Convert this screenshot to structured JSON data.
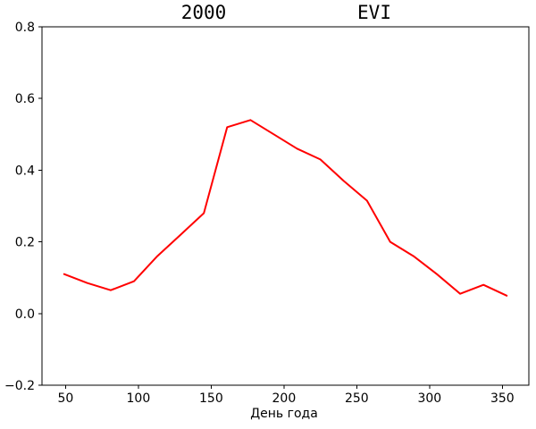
{
  "figure": {
    "title_year": "2000",
    "title_series": "EVI",
    "xlabel": "День года",
    "background_color": "#ffffff",
    "axes_color": "#000000",
    "text_color": "#000000"
  },
  "chart_data": {
    "type": "line",
    "title": "2000",
    "subtitle": "EVI",
    "xlabel": "День года",
    "ylabel": "",
    "xlim": [
      33.8,
      368.2
    ],
    "ylim": [
      -0.2,
      0.8
    ],
    "xticks": [
      50,
      100,
      150,
      200,
      250,
      300,
      350
    ],
    "yticks": [
      -0.2,
      0.0,
      0.2,
      0.4,
      0.6,
      0.8
    ],
    "grid": false,
    "legend_position": "none",
    "series": [
      {
        "name": "EVI",
        "color": "#ff0000",
        "line_width": 2,
        "x": [
          49,
          65,
          81,
          97,
          113,
          129,
          145,
          161,
          177,
          193,
          209,
          225,
          241,
          257,
          273,
          289,
          305,
          321,
          337,
          353
        ],
        "y": [
          0.11,
          0.085,
          0.065,
          0.09,
          0.16,
          0.22,
          0.28,
          0.52,
          0.54,
          0.5,
          0.46,
          0.43,
          0.37,
          0.315,
          0.2,
          0.16,
          0.11,
          0.055,
          0.08,
          0.05
        ]
      }
    ]
  }
}
